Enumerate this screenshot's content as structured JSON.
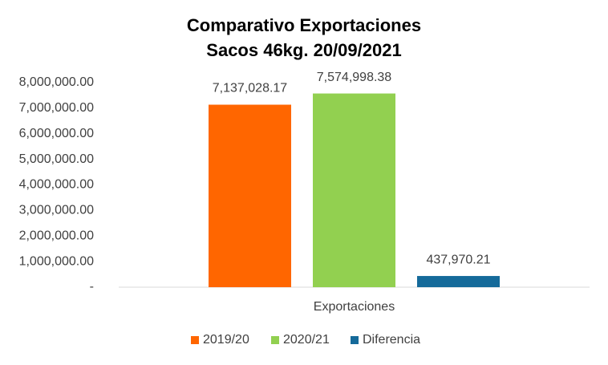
{
  "chart_data": {
    "type": "bar",
    "title": [
      "Comparativo Exportaciones",
      "Sacos 46kg. 20/09/2021"
    ],
    "categories": [
      "Exportaciones"
    ],
    "series": [
      {
        "name": "2019/20",
        "color": "#ff6600",
        "values": [
          7137028.17
        ],
        "value_labels": [
          "7,137,028.17"
        ]
      },
      {
        "name": "2020/21",
        "color": "#92d050",
        "values": [
          7574998.38
        ],
        "value_labels": [
          "7,574,998.38"
        ]
      },
      {
        "name": "Diferencia",
        "color": "#156a9a",
        "values": [
          437970.21
        ],
        "value_labels": [
          "437,970.21"
        ]
      }
    ],
    "ylim": [
      0,
      8000000
    ],
    "yticks": [
      {
        "value": 0,
        "label": "-"
      },
      {
        "value": 1000000,
        "label": "1,000,000.00"
      },
      {
        "value": 2000000,
        "label": "2,000,000.00"
      },
      {
        "value": 3000000,
        "label": "3,000,000.00"
      },
      {
        "value": 4000000,
        "label": "4,000,000.00"
      },
      {
        "value": 5000000,
        "label": "5,000,000.00"
      },
      {
        "value": 6000000,
        "label": "6,000,000.00"
      },
      {
        "value": 7000000,
        "label": "7,000,000.00"
      },
      {
        "value": 8000000,
        "label": "8,000,000.00"
      }
    ],
    "grid": false,
    "legend": "bottom"
  }
}
